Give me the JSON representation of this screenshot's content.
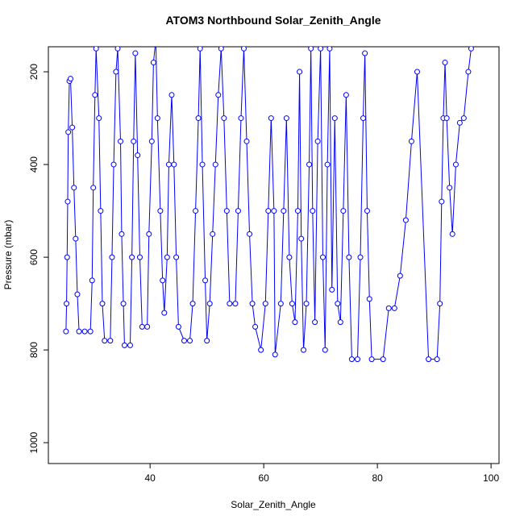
{
  "chart_data": {
    "type": "line",
    "title": "ATOM3 Northbound Solar_Zenith_Angle",
    "x_label": "Solar_Zenith_Angle",
    "y_label": "Pressure (mbar)",
    "xlim": [
      22.1,
      101.4
    ],
    "ylim": [
      1045,
      146
    ],
    "xticks": [
      40,
      60,
      80,
      100
    ],
    "yticks": [
      200,
      400,
      600,
      800,
      1000
    ],
    "markers": true,
    "series": [
      {
        "color": "#0000ff",
        "x": [
          25.2,
          25.3,
          25.4,
          25.5,
          25.6,
          25.8,
          26.0,
          26.3,
          26.6,
          26.9,
          27.2,
          27.5,
          28.5,
          29.5,
          29.8,
          30.0,
          30.3,
          30.5,
          31.0,
          31.3,
          31.6,
          32.0,
          33.0,
          33.3,
          33.6,
          34.0,
          34.3,
          34.8,
          35.0,
          35.3,
          35.5,
          36.5,
          36.8,
          37.1,
          37.4,
          37.8,
          38.2,
          38.6,
          39.5,
          39.8,
          40.3,
          40.6,
          41.0,
          41.3,
          41.8,
          42.2,
          42.5,
          43.0,
          43.3,
          43.8,
          44.2,
          44.6,
          45.0,
          46.0,
          47.0,
          47.5,
          48.0,
          48.5,
          48.8,
          49.2,
          49.7,
          50.0,
          50.5,
          51.0,
          51.5,
          52.0,
          52.5,
          53.0,
          53.5,
          54.0,
          55.0,
          55.5,
          56.0,
          56.5,
          57.0,
          57.5,
          58.0,
          58.5,
          59.5,
          60.3,
          60.8,
          61.3,
          61.8,
          62.0,
          63.0,
          63.5,
          64.0,
          64.5,
          65.0,
          65.5,
          66.0,
          66.3,
          66.6,
          67.0,
          67.5,
          68.0,
          68.3,
          68.6,
          69.0,
          69.5,
          70.0,
          70.4,
          70.8,
          71.2,
          71.6,
          72.0,
          72.5,
          73.0,
          73.5,
          74.0,
          74.5,
          75.0,
          75.5,
          76.5,
          77.0,
          77.5,
          77.8,
          78.2,
          78.6,
          79.0,
          81.0,
          82.0,
          83.0,
          84.0,
          85.0,
          86.0,
          87.0,
          89.0,
          90.5,
          91.0,
          91.3,
          91.6,
          91.9,
          92.2,
          92.7,
          93.2,
          93.8,
          94.5,
          95.2,
          96.0,
          96.5
        ],
        "values": [
          760,
          700,
          600,
          480,
          330,
          220,
          215,
          320,
          450,
          560,
          680,
          760,
          760,
          760,
          650,
          450,
          250,
          150,
          300,
          500,
          700,
          780,
          780,
          600,
          400,
          200,
          150,
          350,
          550,
          700,
          790,
          790,
          600,
          350,
          160,
          380,
          600,
          750,
          750,
          550,
          350,
          180,
          130,
          300,
          500,
          650,
          720,
          600,
          400,
          250,
          400,
          600,
          750,
          780,
          780,
          700,
          500,
          300,
          150,
          400,
          650,
          780,
          700,
          550,
          400,
          250,
          150,
          300,
          500,
          700,
          700,
          500,
          300,
          150,
          350,
          550,
          700,
          750,
          800,
          700,
          500,
          300,
          500,
          810,
          700,
          500,
          300,
          600,
          700,
          740,
          500,
          200,
          560,
          800,
          700,
          400,
          150,
          500,
          740,
          350,
          150,
          600,
          800,
          400,
          150,
          670,
          300,
          700,
          740,
          500,
          250,
          600,
          820,
          820,
          600,
          300,
          160,
          500,
          690,
          820,
          820,
          710,
          710,
          640,
          520,
          350,
          200,
          820,
          820,
          700,
          480,
          300,
          180,
          300,
          450,
          550,
          400,
          310,
          300,
          200,
          150
        ]
      }
    ]
  }
}
